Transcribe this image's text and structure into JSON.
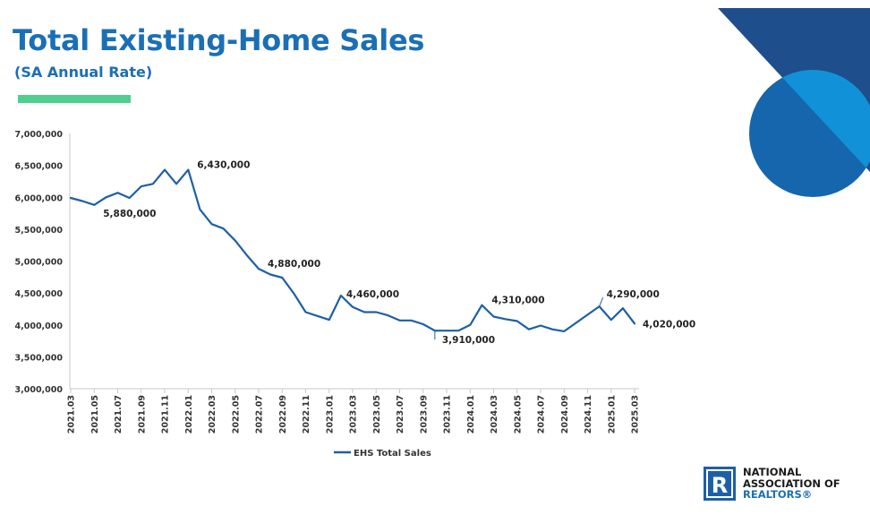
{
  "header": {
    "title": "Total Existing-Home Sales",
    "subtitle": "(SA Annual Rate)"
  },
  "logo": {
    "line1": "NATIONAL",
    "line2": "ASSOCIATION OF",
    "line3": "REALTORS®",
    "mark": "R"
  },
  "colors": {
    "title": "#1b6fb5",
    "accent_bar": "#4fcf8e",
    "series_line": "#1d5fa6",
    "deco_dark": "#1f4e8c",
    "deco_mid": "#1666ad",
    "deco_light": "#1192d8"
  },
  "chart_data": {
    "type": "line",
    "title": "Total Existing-Home Sales",
    "subtitle": "(SA Annual Rate)",
    "xlabel": "",
    "ylabel": "",
    "ylim": [
      3000000,
      7000000
    ],
    "yticks": [
      3000000,
      3500000,
      4000000,
      4500000,
      5000000,
      5500000,
      6000000,
      6500000,
      7000000
    ],
    "ytick_labels": [
      "3,000,000",
      "3,500,000",
      "4,000,000",
      "4,500,000",
      "5,000,000",
      "5,500,000",
      "6,000,000",
      "6,500,000",
      "7,000,000"
    ],
    "x_tick_labels": [
      "2021.03",
      "2021.05",
      "2021.07",
      "2021.09",
      "2021.11",
      "2022.01",
      "2022.03",
      "2022.05",
      "2022.07",
      "2022.09",
      "2022.11",
      "2023.01",
      "2023.03",
      "2023.05",
      "2023.07",
      "2023.09",
      "2023.11",
      "2024.01",
      "2024.03",
      "2024.05",
      "2024.07",
      "2024.09",
      "2024.11",
      "2025.01",
      "2025.03"
    ],
    "grid": false,
    "legend_position": "bottom",
    "series": [
      {
        "name": "EHS Total Sales",
        "values": [
          5990000,
          5940000,
          5880000,
          6000000,
          6070000,
          5990000,
          6170000,
          6210000,
          6430000,
          6210000,
          6430000,
          5810000,
          5580000,
          5510000,
          5320000,
          5090000,
          4880000,
          4790000,
          4740000,
          4490000,
          4200000,
          4140000,
          4080000,
          4460000,
          4280000,
          4200000,
          4200000,
          4150000,
          4070000,
          4070000,
          4010000,
          3910000,
          3910000,
          3910000,
          4000000,
          4310000,
          4130000,
          4090000,
          4060000,
          3930000,
          3990000,
          3930000,
          3900000,
          4030000,
          4160000,
          4290000,
          4080000,
          4260000,
          4020000
        ]
      }
    ],
    "annotations": [
      {
        "label": "5,880,000",
        "index": 2,
        "value": 5880000
      },
      {
        "label": "6,430,000",
        "index": 10,
        "value": 6430000
      },
      {
        "label": "4,880,000",
        "index": 16,
        "value": 4880000
      },
      {
        "label": "4,460,000",
        "index": 23,
        "value": 4460000
      },
      {
        "label": "3,910,000",
        "index": 31,
        "value": 3910000
      },
      {
        "label": "4,310,000",
        "index": 35,
        "value": 4310000
      },
      {
        "label": "4,290,000",
        "index": 45,
        "value": 4290000
      },
      {
        "label": "4,020,000",
        "index": 48,
        "value": 4020000
      }
    ]
  }
}
